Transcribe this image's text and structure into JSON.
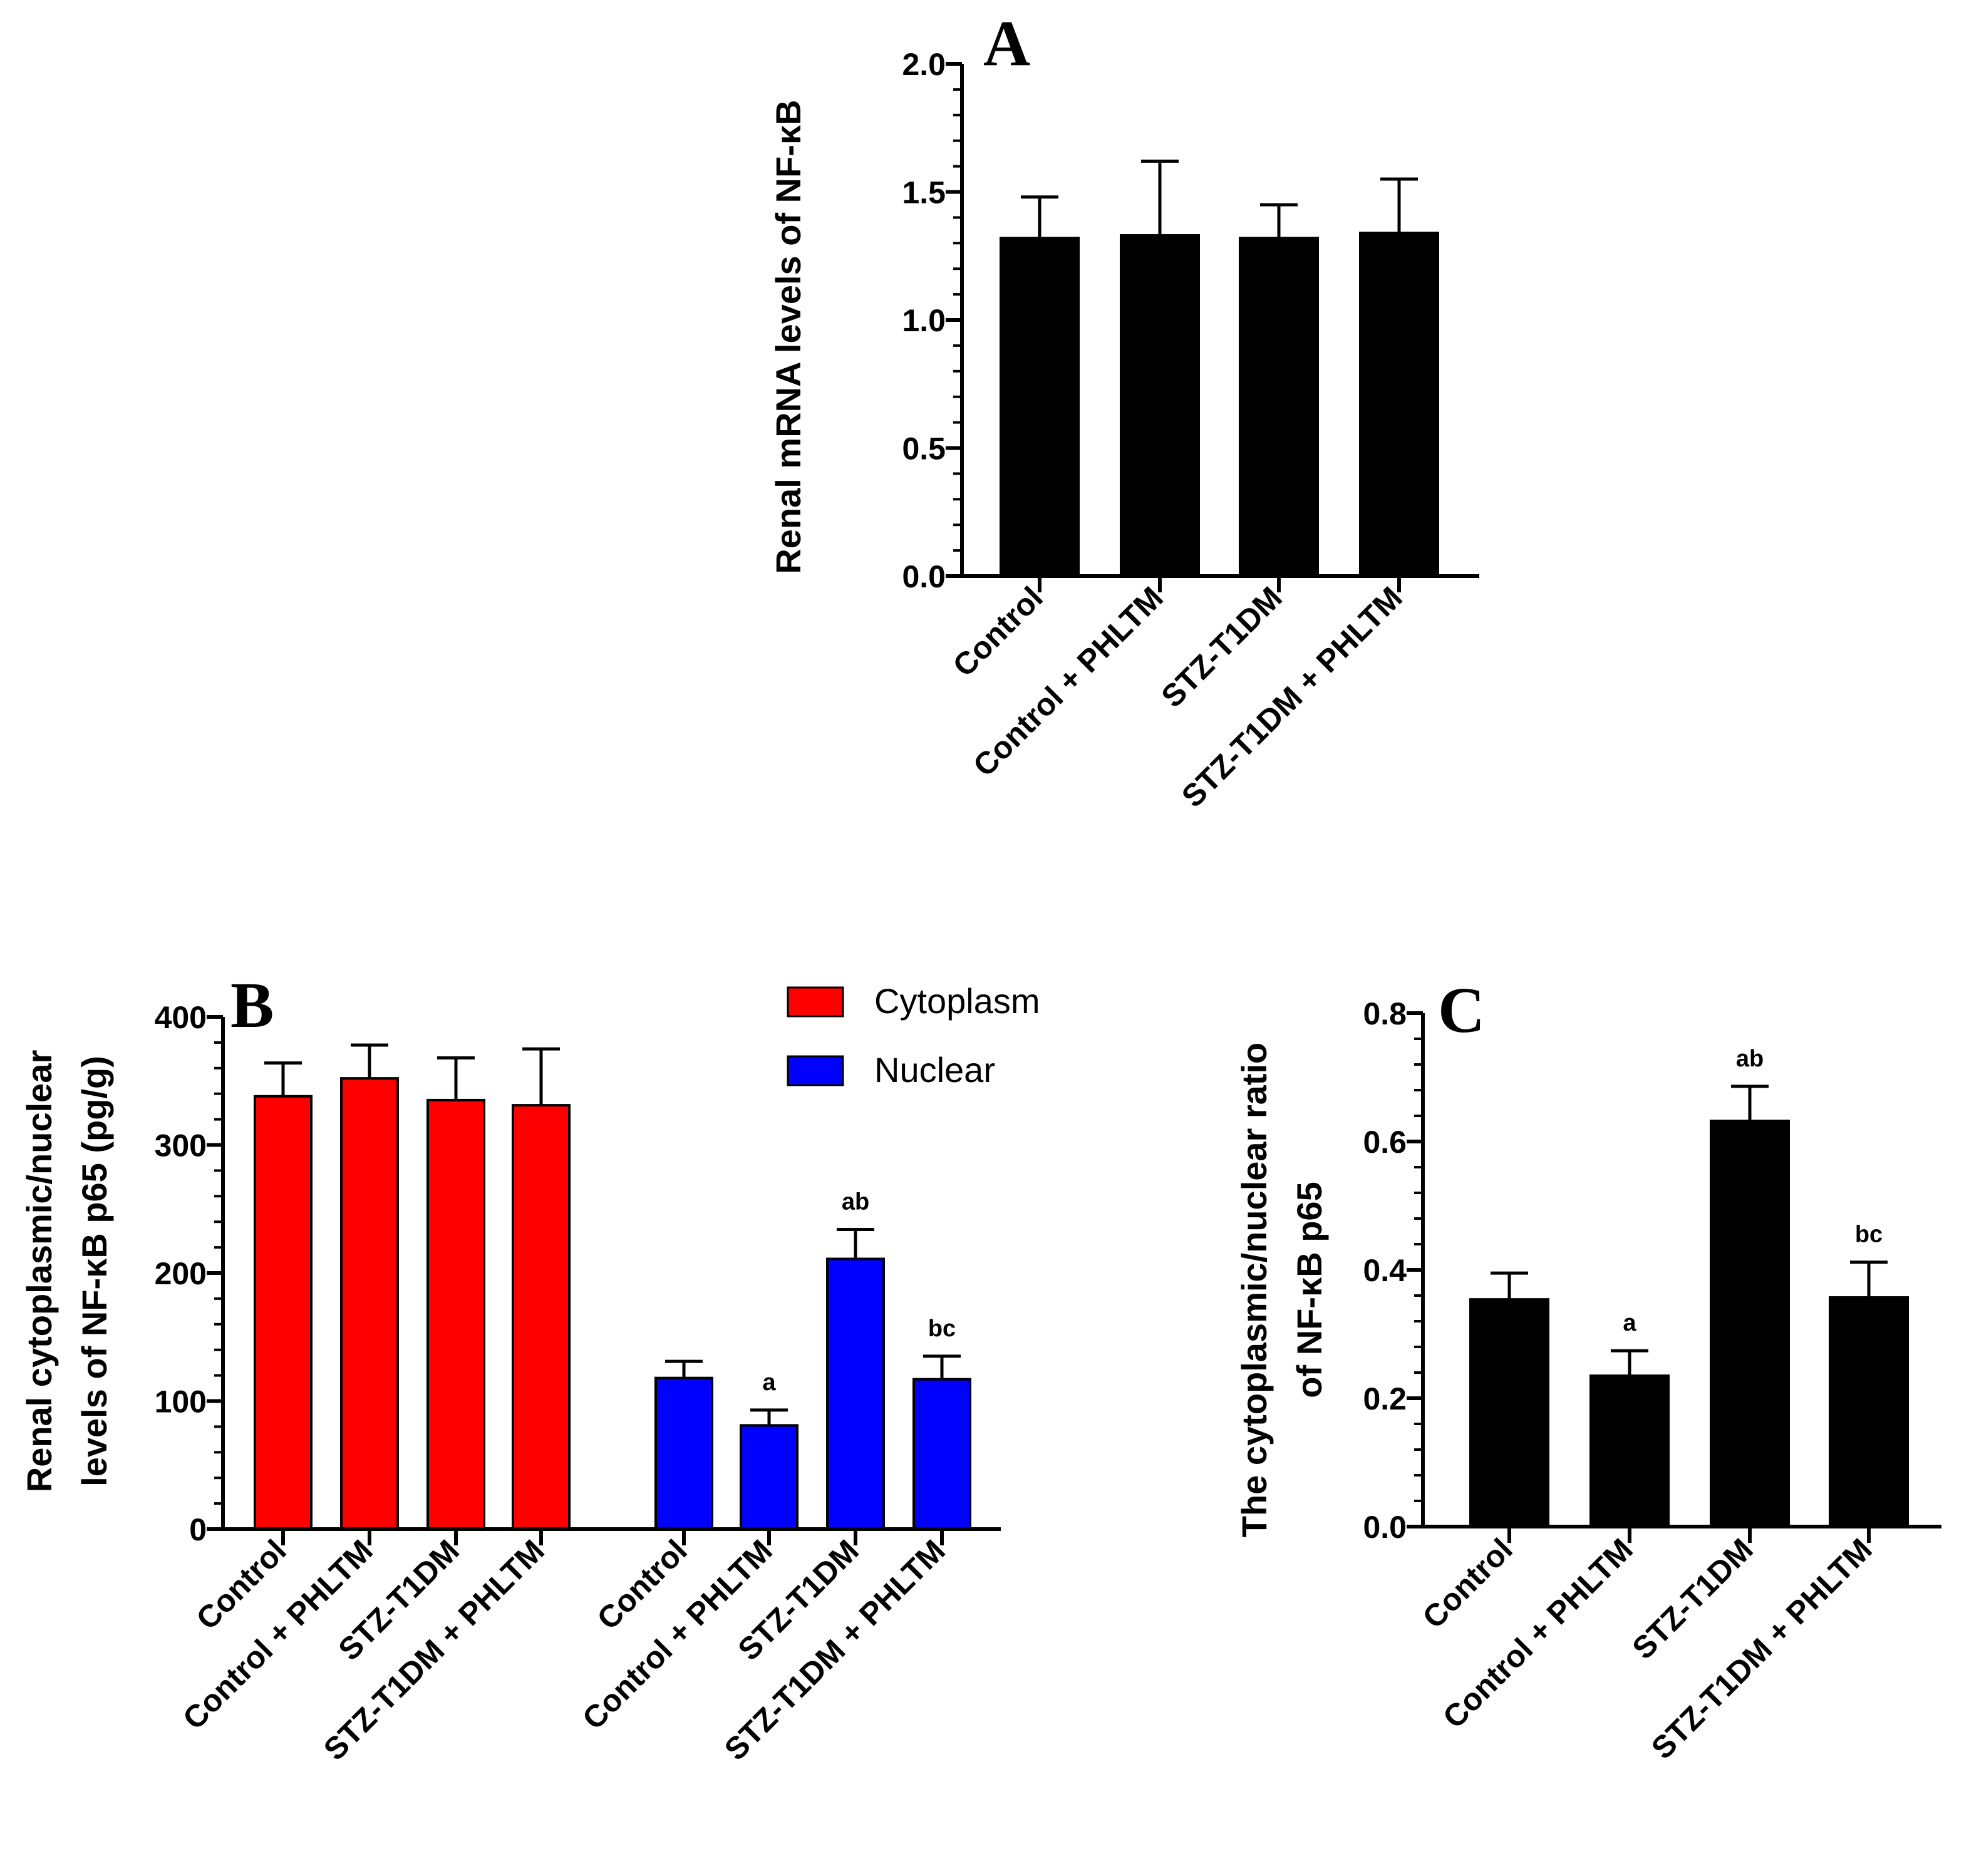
{
  "chart_data": [
    {
      "panel": "A",
      "type": "bar",
      "ylabel": "Renal mRNA levels of NF-κB",
      "categories": [
        "Control",
        "Control + PHLTM",
        "STZ-T1DM",
        "STZ-T1DM + PHLTM"
      ],
      "values": [
        1.32,
        1.33,
        1.32,
        1.34
      ],
      "errors": [
        0.16,
        0.29,
        0.13,
        0.21
      ],
      "ylim": [
        0,
        2.0
      ],
      "yticks": [
        "0.0",
        "0.5",
        "1.0",
        "1.5",
        "2.0"
      ],
      "color": "#000000"
    },
    {
      "panel": "B",
      "type": "bar",
      "ylabel_line1": "Renal cytoplasmic/nuclear",
      "ylabel_line2": "levels of NF-κB p65 (pg/g)",
      "categories": [
        "Control",
        "Control + PHLTM",
        "STZ-T1DM",
        "STZ-T1DM + PHLTM"
      ],
      "ylim": [
        0,
        400
      ],
      "yticks": [
        "0",
        "100",
        "200",
        "300",
        "400"
      ],
      "legend_position": "top-right",
      "series": [
        {
          "name": "Cytoplasm",
          "color": "#ff0000",
          "values": [
            338,
            352,
            335,
            331
          ],
          "errors": [
            26,
            26,
            33,
            44
          ],
          "sig": [
            "",
            "",
            "",
            ""
          ]
        },
        {
          "name": "Nuclear",
          "color": "#0000ff",
          "values": [
            118,
            81,
            211,
            117
          ],
          "errors": [
            13,
            12,
            23,
            18
          ],
          "sig": [
            "",
            "a",
            "ab",
            "bc"
          ]
        }
      ]
    },
    {
      "panel": "C",
      "type": "bar",
      "ylabel_line1": "The cytoplasmic/nuclear ratio",
      "ylabel_line2": "of NF-κB p65",
      "categories": [
        "Control",
        "Control + PHLTM",
        "STZ-T1DM",
        "STZ-T1DM + PHLTM"
      ],
      "values": [
        0.354,
        0.235,
        0.632,
        0.357
      ],
      "errors": [
        0.041,
        0.039,
        0.054,
        0.055
      ],
      "sig": [
        "",
        "a",
        "ab",
        "bc"
      ],
      "ylim": [
        0,
        0.8
      ],
      "yticks": [
        "0.0",
        "0.2",
        "0.4",
        "0.6",
        "0.8"
      ],
      "color": "#000000"
    }
  ]
}
